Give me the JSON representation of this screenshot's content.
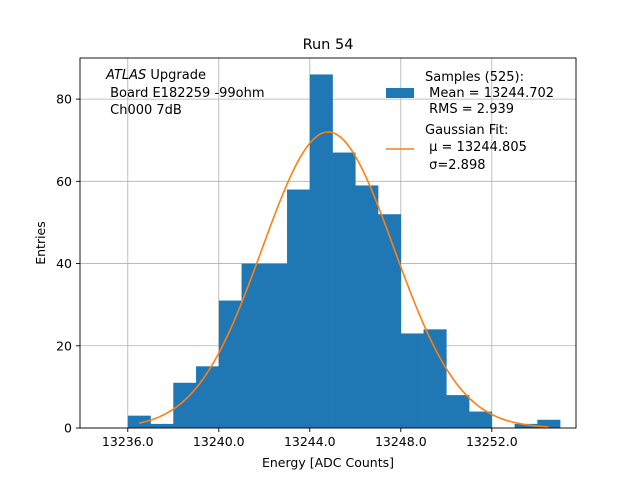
{
  "chart_data": {
    "type": "bar",
    "title": "Run 54",
    "xlabel": "Energy [ADC Counts]",
    "ylabel": "Entries",
    "xlim": [
      13233.9,
      13255.7
    ],
    "ylim": [
      0,
      90
    ],
    "xticks": [
      13236.0,
      13240.0,
      13244.0,
      13248.0,
      13252.0
    ],
    "xtick_labels": [
      "13236.0",
      "13240.0",
      "13244.0",
      "13248.0",
      "13252.0"
    ],
    "yticks": [
      0,
      20,
      40,
      60,
      80
    ],
    "ytick_labels": [
      "0",
      "20",
      "40",
      "60",
      "80"
    ],
    "grid": true,
    "bin_width": 1,
    "bin_edges_start": 13236,
    "bins": [
      {
        "x0": 13236,
        "x1": 13237,
        "value": 3
      },
      {
        "x0": 13237,
        "x1": 13238,
        "value": 1
      },
      {
        "x0": 13238,
        "x1": 13239,
        "value": 11
      },
      {
        "x0": 13239,
        "x1": 13240,
        "value": 15
      },
      {
        "x0": 13240,
        "x1": 13241,
        "value": 31
      },
      {
        "x0": 13241,
        "x1": 13242,
        "value": 40
      },
      {
        "x0": 13242,
        "x1": 13243,
        "value": 40
      },
      {
        "x0": 13243,
        "x1": 13244,
        "value": 58
      },
      {
        "x0": 13244,
        "x1": 13245,
        "value": 86
      },
      {
        "x0": 13245,
        "x1": 13246,
        "value": 67
      },
      {
        "x0": 13246,
        "x1": 13247,
        "value": 59
      },
      {
        "x0": 13247,
        "x1": 13248,
        "value": 52
      },
      {
        "x0": 13248,
        "x1": 13249,
        "value": 23
      },
      {
        "x0": 13249,
        "x1": 13250,
        "value": 24
      },
      {
        "x0": 13250,
        "x1": 13251,
        "value": 8
      },
      {
        "x0": 13251,
        "x1": 13252,
        "value": 4
      },
      {
        "x0": 13252,
        "x1": 13253,
        "value": 0
      },
      {
        "x0": 13253,
        "x1": 13254,
        "value": 1
      },
      {
        "x0": 13254,
        "x1": 13255,
        "value": 2
      }
    ],
    "fit": {
      "type": "gaussian",
      "mu": 13244.805,
      "sigma": 2.898,
      "peak": 72,
      "x_range": [
        13236.5,
        13254.5
      ]
    },
    "annotation_lines": [
      {
        "text": "ATLAS",
        "italic": true,
        "rest": " Upgrade"
      },
      {
        "text": " Board E182259 -99ohm"
      },
      {
        "text": " Ch000 7dB"
      }
    ],
    "legend": {
      "placement": "top-right",
      "samples_lines": [
        "Samples (525):",
        " Mean = 13244.702",
        " RMS = 2.939"
      ],
      "fit_lines": [
        "Gaussian Fit:",
        " μ = 13244.805",
        " σ=2.898"
      ]
    },
    "colors": {
      "bar": "#1f77b4",
      "fit": "#ff7f0e",
      "grid": "#b0b0b0"
    }
  }
}
